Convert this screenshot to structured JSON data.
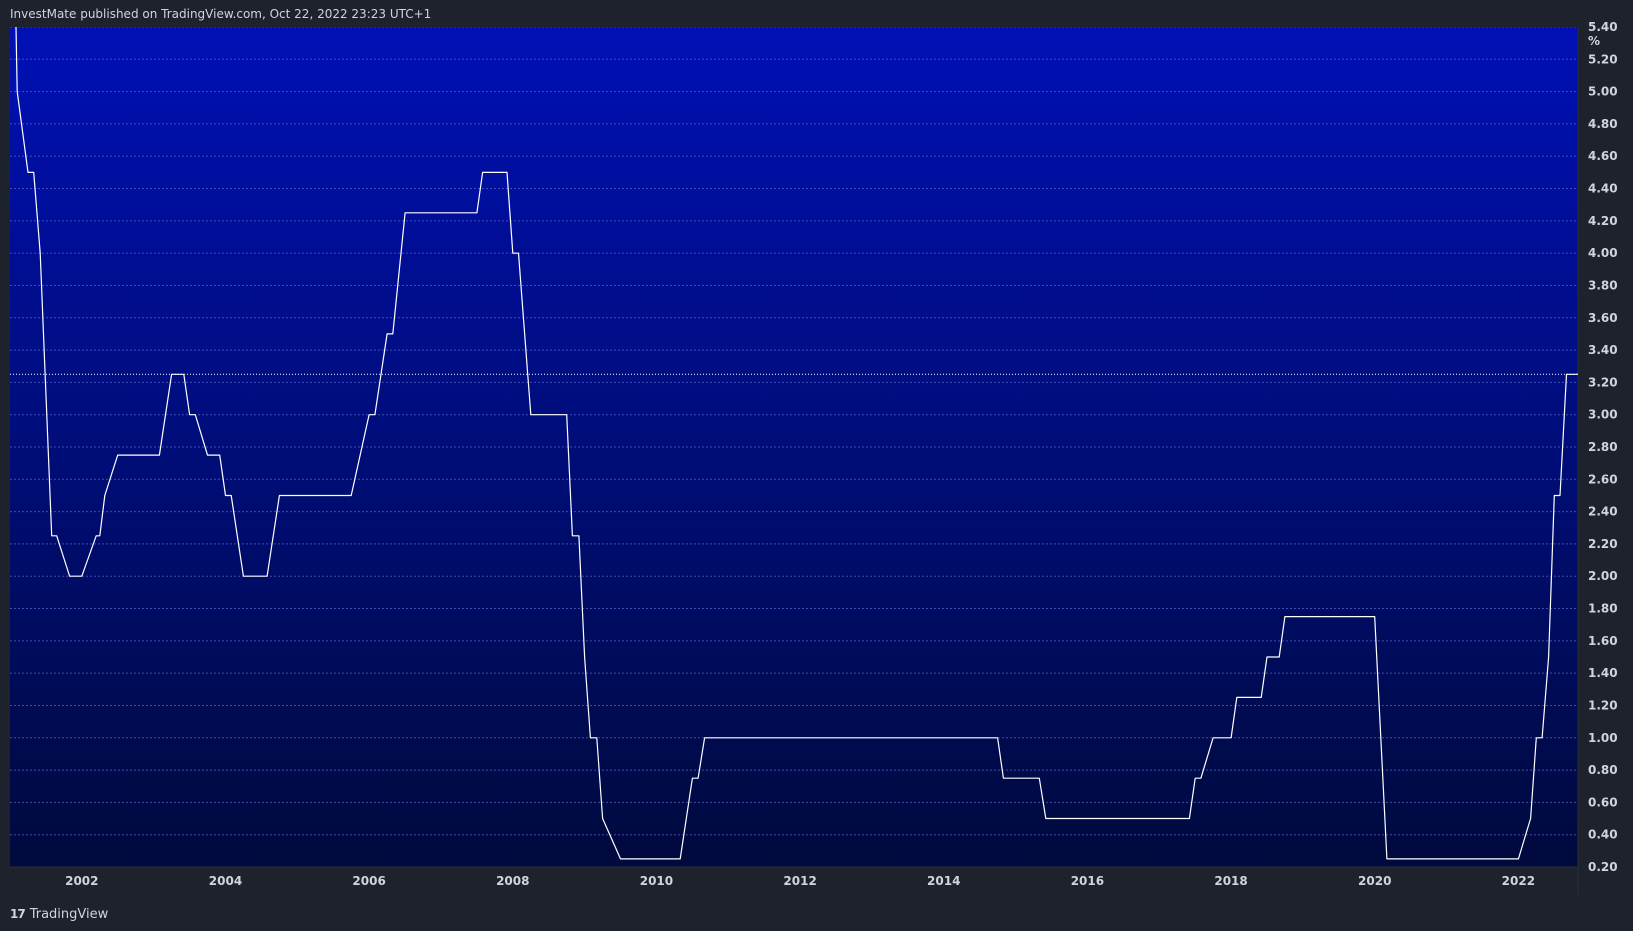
{
  "header": {
    "published_text": "InvestMate published on TradingView.com, Oct 22, 2022 23:23 UTC+1"
  },
  "footer": {
    "logo_glyph": "17",
    "brand": "TradingView"
  },
  "colors": {
    "page_bg": "#1e222d",
    "plot_bg_top": "#0010b5",
    "plot_bg_bottom": "#000a3d",
    "line": "#ffffff",
    "grid": "#5a66c8",
    "text": "#d1d4dc"
  },
  "chart_data": {
    "type": "line",
    "unit_label": "%",
    "title": "",
    "xlabel": "",
    "ylabel": "",
    "grid": true,
    "xlim": [
      2001.0,
      2022.83
    ],
    "ylim": [
      0.2,
      5.4
    ],
    "y_ticks": [
      "5.40",
      "5.20",
      "5.00",
      "4.80",
      "4.60",
      "4.40",
      "4.20",
      "4.00",
      "3.80",
      "3.60",
      "3.40",
      "3.20",
      "3.00",
      "2.80",
      "2.60",
      "2.40",
      "2.20",
      "2.00",
      "1.80",
      "1.60",
      "1.40",
      "1.20",
      "1.00",
      "0.80",
      "0.60",
      "0.40",
      "0.20"
    ],
    "x_ticks": [
      "2002",
      "2004",
      "2006",
      "2008",
      "2010",
      "2012",
      "2014",
      "2016",
      "2018",
      "2020",
      "2022"
    ],
    "last_value_line": 3.25,
    "series": [
      {
        "x": [
          2001.0,
          2001.08,
          2001.1,
          2001.25,
          2001.33,
          2001.42,
          2001.58,
          2001.65,
          2001.83,
          2001.9,
          2001.98,
          2002.0,
          2002.2,
          2002.25,
          2002.32,
          2002.5,
          2002.75,
          2003.08,
          2003.25,
          2003.42,
          2003.5,
          2003.58,
          2003.75,
          2003.92,
          2004.0,
          2004.08,
          2004.25,
          2004.42,
          2004.58,
          2004.75,
          2005.0,
          2005.25,
          2005.5,
          2005.75,
          2006.0,
          2006.08,
          2006.25,
          2006.33,
          2006.5,
          2006.75,
          2007.0,
          2007.25,
          2007.5,
          2007.58,
          2007.75,
          2007.92,
          2008.0,
          2008.08,
          2008.25,
          2008.5,
          2008.75,
          2008.83,
          2008.92,
          2009.0,
          2009.08,
          2009.17,
          2009.25,
          2009.5,
          2010.0,
          2010.33,
          2010.5,
          2010.58,
          2010.67,
          2011.0,
          2012.0,
          2013.0,
          2014.0,
          2014.75,
          2014.83,
          2015.0,
          2015.33,
          2015.42,
          2016.0,
          2017.0,
          2017.42,
          2017.5,
          2017.58,
          2017.75,
          2017.83,
          2018.0,
          2018.08,
          2018.25,
          2018.42,
          2018.5,
          2018.67,
          2018.75,
          2019.0,
          2019.5,
          2020.0,
          2020.17,
          2020.25,
          2021.0,
          2022.0,
          2022.17,
          2022.25,
          2022.33,
          2022.42,
          2022.5,
          2022.58,
          2022.67,
          2022.75,
          2022.83
        ],
        "y": [
          5.5,
          5.5,
          5.0,
          4.5,
          4.5,
          4.0,
          2.25,
          2.25,
          2.0,
          2.0,
          2.0,
          2.0,
          2.25,
          2.25,
          2.5,
          2.75,
          2.75,
          2.75,
          3.25,
          3.25,
          3.0,
          3.0,
          2.75,
          2.75,
          2.5,
          2.5,
          2.0,
          2.0,
          2.0,
          2.5,
          2.5,
          2.5,
          2.5,
          2.5,
          3.0,
          3.0,
          3.5,
          3.5,
          4.25,
          4.25,
          4.25,
          4.25,
          4.25,
          4.5,
          4.5,
          4.5,
          4.0,
          4.0,
          3.0,
          3.0,
          3.0,
          2.25,
          2.25,
          1.5,
          1.0,
          1.0,
          0.5,
          0.25,
          0.25,
          0.25,
          0.75,
          0.75,
          1.0,
          1.0,
          1.0,
          1.0,
          1.0,
          1.0,
          0.75,
          0.75,
          0.75,
          0.5,
          0.5,
          0.5,
          0.5,
          0.75,
          0.75,
          1.0,
          1.0,
          1.0,
          1.25,
          1.25,
          1.25,
          1.5,
          1.5,
          1.75,
          1.75,
          1.75,
          1.75,
          0.25,
          0.25,
          0.25,
          0.25,
          0.5,
          1.0,
          1.0,
          1.5,
          2.5,
          2.5,
          3.25,
          3.25,
          3.25
        ]
      }
    ]
  }
}
